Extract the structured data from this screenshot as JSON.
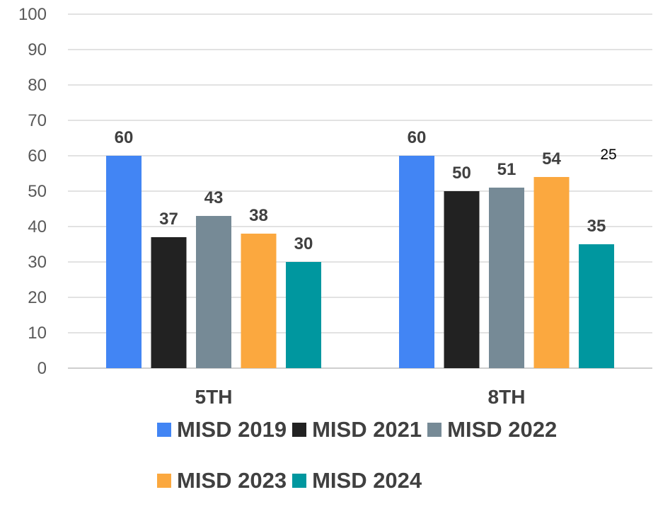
{
  "chart_data": {
    "type": "bar",
    "categories": [
      "5TH",
      "8TH"
    ],
    "series": [
      {
        "name": "MISD 2019",
        "color": "#4285F4",
        "values": [
          60,
          60
        ]
      },
      {
        "name": "MISD 2021",
        "color": "#222222",
        "values": [
          37,
          50
        ]
      },
      {
        "name": "MISD 2022",
        "color": "#768A96",
        "values": [
          43,
          51
        ]
      },
      {
        "name": "MISD 2023",
        "color": "#FBA83F",
        "values": [
          38,
          54
        ]
      },
      {
        "name": "MISD 2024",
        "color": "#00979F",
        "values": [
          30,
          35
        ]
      }
    ],
    "ylim": [
      0,
      100
    ],
    "yticks": [
      0,
      10,
      20,
      30,
      40,
      50,
      60,
      70,
      80,
      90,
      100
    ],
    "grid": true,
    "legend": "bottom",
    "annotations": [
      "25"
    ],
    "title": "",
    "xlabel": "",
    "ylabel": ""
  }
}
